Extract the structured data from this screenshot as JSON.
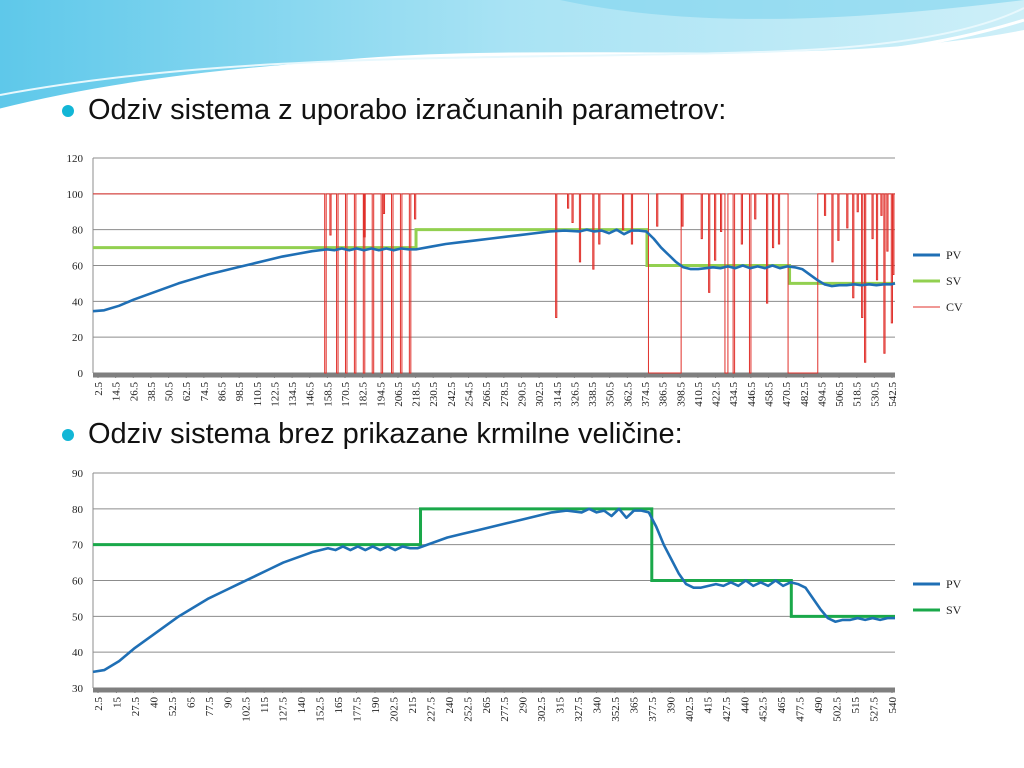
{
  "slide": {
    "bullets": [
      "Odziv sistema z uporabo izračunanih parametrov:",
      "Odziv sistema brez prikazane krmilne veličine:"
    ]
  },
  "colors": {
    "pv": "#1f6fb5",
    "sv1": "#92d050",
    "sv2": "#1aa84a",
    "cv": "#e0302b",
    "bullet": "#12b6d6"
  },
  "chart_data": [
    {
      "type": "line",
      "title": "",
      "xlabel": "",
      "ylabel": "",
      "ylim": [
        0,
        120
      ],
      "yticks": [
        0,
        20,
        40,
        60,
        80,
        100,
        120
      ],
      "xlim": [
        2.5,
        542.5
      ],
      "xticks": [
        "2.5",
        "14.5",
        "26.5",
        "38.5",
        "50.5",
        "62.5",
        "74.5",
        "86.5",
        "98.5",
        "110.5",
        "122.5",
        "134.5",
        "146.5",
        "158.5",
        "170.5",
        "182.5",
        "194.5",
        "206.5",
        "218.5",
        "230.5",
        "242.5",
        "254.5",
        "266.5",
        "278.5",
        "290.5",
        "302.5",
        "314.5",
        "326.5",
        "338.5",
        "350.5",
        "362.5",
        "374.5",
        "386.5",
        "398.5",
        "410.5",
        "422.5",
        "434.5",
        "446.5",
        "458.5",
        "470.5",
        "482.5",
        "494.5",
        "506.5",
        "518.5",
        "530.5",
        "542.5"
      ],
      "grid": true,
      "legend": "right",
      "series": [
        {
          "name": "PV",
          "x": [
            2.5,
            10,
            20,
            30,
            40,
            50,
            60,
            70,
            80,
            90,
            100,
            110,
            120,
            130,
            140,
            150,
            160,
            165,
            170,
            175,
            180,
            185,
            190,
            195,
            200,
            205,
            210,
            215,
            220,
            230,
            240,
            250,
            260,
            270,
            280,
            290,
            300,
            310,
            320,
            330,
            335,
            340,
            345,
            350,
            355,
            360,
            365,
            370,
            375,
            380,
            385,
            390,
            395,
            400,
            405,
            410,
            415,
            420,
            425,
            430,
            435,
            440,
            445,
            450,
            455,
            460,
            465,
            470,
            475,
            480,
            485,
            490,
            495,
            500,
            505,
            510,
            515,
            520,
            525,
            530,
            535,
            540,
            542.5
          ],
          "y": [
            34.5,
            35,
            37.5,
            41,
            44,
            47,
            50,
            52.5,
            55,
            57,
            59,
            61,
            63,
            65,
            66.5,
            68,
            69,
            68.5,
            69.5,
            68.5,
            69.5,
            68.5,
            69.5,
            68.5,
            69.5,
            68.5,
            69.5,
            69,
            69,
            70.5,
            72,
            73,
            74,
            75,
            76,
            77,
            78,
            79,
            79.5,
            79,
            80,
            79,
            79.5,
            78,
            80,
            77.5,
            79.5,
            79.5,
            79,
            75,
            70,
            66,
            62,
            59,
            58,
            58,
            58.5,
            59,
            58.5,
            59.5,
            58.5,
            60,
            58.5,
            59.5,
            58.5,
            60,
            58.5,
            59.5,
            59,
            58,
            55,
            52,
            49.5,
            48.5,
            49,
            49,
            49.5,
            49,
            49.5,
            49,
            49.5,
            49.5,
            50
          ]
        },
        {
          "name": "SV",
          "steps": [
            [
              2.5,
              70
            ],
            [
              220,
              80
            ],
            [
              375.5,
              60
            ],
            [
              471.5,
              50
            ],
            [
              542.5,
              50
            ]
          ]
        },
        {
          "name": "CV",
          "base": 100,
          "spikes_to_zero": [
            [
              158.5,
              159.5
            ],
            [
              166.5,
              167.5
            ],
            [
              172.5,
              173.5
            ],
            [
              178.5,
              179.5
            ],
            [
              184.5,
              185.5
            ],
            [
              190.5,
              191.5
            ],
            [
              196.5,
              197.5
            ],
            [
              203.5,
              204.5
            ],
            [
              209.5,
              210.5
            ],
            [
              215.5,
              216.5
            ],
            [
              376.5,
              398.5
            ],
            [
              428,
              430
            ],
            [
              433.5,
              434.5
            ],
            [
              444.5,
              445.5
            ],
            [
              470.5,
              490.5
            ]
          ],
          "spikes_partial": [
            [
              330,
              62
            ],
            [
              339,
              58
            ],
            [
              314,
              31
            ],
            [
              325,
              84
            ],
            [
              322,
              92
            ],
            [
              343,
              72
            ],
            [
              359,
              80
            ],
            [
              365,
              72
            ],
            [
              382,
              82
            ],
            [
              399,
              82
            ],
            [
              412,
              75
            ],
            [
              417,
              45
            ],
            [
              421,
              63
            ],
            [
              425,
              79
            ],
            [
              439,
              72
            ],
            [
              448,
              86
            ],
            [
              456,
              39
            ],
            [
              460,
              70
            ],
            [
              464,
              72
            ],
            [
              495,
              88
            ],
            [
              500,
              62
            ],
            [
              504,
              74
            ],
            [
              510,
              81
            ],
            [
              514,
              42
            ],
            [
              517,
              90
            ],
            [
              520,
              31
            ],
            [
              522,
              6
            ],
            [
              527,
              75
            ],
            [
              530,
              52
            ],
            [
              533,
              88
            ],
            [
              535,
              11
            ],
            [
              537,
              68
            ],
            [
              540,
              28
            ],
            [
              541,
              55
            ],
            [
              162,
              77
            ],
            [
              185,
              76
            ],
            [
              198,
              89
            ],
            [
              219,
              86
            ]
          ]
        }
      ]
    },
    {
      "type": "line",
      "title": "",
      "xlabel": "",
      "ylabel": "",
      "ylim": [
        30,
        90
      ],
      "yticks": [
        30,
        40,
        50,
        60,
        70,
        80,
        90
      ],
      "xlim": [
        2.5,
        540
      ],
      "xticks": [
        "2.5",
        "15",
        "27.5",
        "40",
        "52.5",
        "65",
        "77.5",
        "90",
        "102.5",
        "115",
        "127.5",
        "140",
        "152.5",
        "165",
        "177.5",
        "190",
        "202.5",
        "215",
        "227.5",
        "240",
        "252.5",
        "265",
        "277.5",
        "290",
        "302.5",
        "315",
        "327.5",
        "340",
        "352.5",
        "365",
        "377.5",
        "390",
        "402.5",
        "415",
        "427.5",
        "440",
        "452.5",
        "465",
        "477.5",
        "490",
        "502.5",
        "515",
        "527.5",
        "540"
      ],
      "grid": true,
      "legend": "right",
      "series": [
        {
          "name": "PV",
          "x": [
            2.5,
            10,
            20,
            30,
            40,
            50,
            60,
            70,
            80,
            90,
            100,
            110,
            120,
            130,
            140,
            150,
            160,
            165,
            170,
            175,
            180,
            185,
            190,
            195,
            200,
            205,
            210,
            215,
            220,
            230,
            240,
            250,
            260,
            270,
            280,
            290,
            300,
            310,
            320,
            330,
            335,
            340,
            345,
            350,
            355,
            360,
            365,
            370,
            375,
            380,
            385,
            390,
            395,
            400,
            405,
            410,
            415,
            420,
            425,
            430,
            435,
            440,
            445,
            450,
            455,
            460,
            465,
            470,
            475,
            480,
            485,
            490,
            495,
            500,
            505,
            510,
            515,
            520,
            525,
            530,
            535,
            540
          ],
          "y": [
            34.5,
            35,
            37.5,
            41,
            44,
            47,
            50,
            52.5,
            55,
            57,
            59,
            61,
            63,
            65,
            66.5,
            68,
            69,
            68.5,
            69.5,
            68.5,
            69.5,
            68.5,
            69.5,
            68.5,
            69.5,
            68.5,
            69.5,
            69,
            69,
            70.5,
            72,
            73,
            74,
            75,
            76,
            77,
            78,
            79,
            79.5,
            79,
            80,
            79,
            79.5,
            78,
            80,
            77.5,
            79.5,
            79.5,
            79,
            75,
            70,
            66,
            62,
            59,
            58,
            58,
            58.5,
            59,
            58.5,
            59.5,
            58.5,
            60,
            58.5,
            59.5,
            58.5,
            60,
            58.5,
            59.5,
            59,
            58,
            55,
            52,
            49.5,
            48.5,
            49,
            49,
            49.5,
            49,
            49.5,
            49,
            49.5,
            49.5
          ]
        },
        {
          "name": "SV",
          "steps": [
            [
              2.5,
              70
            ],
            [
              222,
              80
            ],
            [
              377,
              60
            ],
            [
              470.5,
              50
            ],
            [
              540,
              50
            ]
          ]
        }
      ]
    }
  ]
}
